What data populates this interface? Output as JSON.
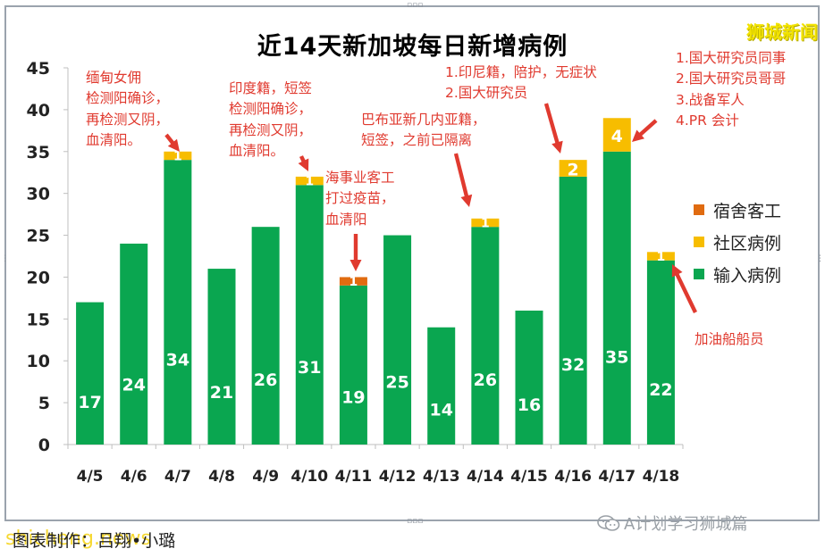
{
  "brand": "狮城新闻",
  "credit": "图表制作：吕翔•小璐",
  "watermark_site": "shicheng.news",
  "watermark_account": "A计划学习狮城篇",
  "colors": {
    "input": "#0aa650",
    "community": "#f7bd00",
    "dorm": "#e06b10",
    "annotation": "#e03a2f"
  },
  "annotations": {
    "a1": "缅甸女佣\n检测阳确诊，\n再检测又阴，\n血清阳。",
    "a2": "印度籍，短签\n检测阳确诊，\n再检测又阴，\n血清阳。",
    "a3": "海事业客工\n打过疫苗，\n血清阳",
    "a4": "巴布亚新几内亚籍，\n短签，之前已隔离",
    "a5": "1.印尼籍，陪护，无症状\n2.国大研究员",
    "a6": "1.国大研究员同事\n2.国大研究员哥哥\n3.战备军人\n4.PR 会计",
    "a7": "加油船船员"
  },
  "chart_data": {
    "type": "bar",
    "stacked": true,
    "title": "近14天新加坡每日新增病例",
    "categories": [
      "4/5",
      "4/6",
      "4/7",
      "4/8",
      "4/9",
      "4/10",
      "4/11",
      "4/12",
      "4/13",
      "4/14",
      "4/15",
      "4/16",
      "4/17",
      "4/18"
    ],
    "series": [
      {
        "name": "输入病例",
        "color": "#0aa650",
        "values": [
          17,
          24,
          34,
          21,
          26,
          31,
          19,
          25,
          14,
          26,
          16,
          32,
          35,
          22
        ]
      },
      {
        "name": "社区病例",
        "color": "#f7bd00",
        "values": [
          0,
          0,
          1,
          0,
          0,
          1,
          0,
          0,
          0,
          1,
          0,
          2,
          4,
          1
        ]
      },
      {
        "name": "宿舍客工",
        "color": "#e06b10",
        "values": [
          0,
          0,
          0,
          0,
          0,
          0,
          1,
          0,
          0,
          0,
          0,
          0,
          0,
          0
        ]
      }
    ],
    "ylim": [
      0,
      45
    ],
    "yticks": [
      0,
      5,
      10,
      15,
      20,
      25,
      30,
      35,
      40,
      45
    ],
    "legend_position": "right",
    "grid": false,
    "data_labels": {
      "input": [
        "17",
        "24",
        "34",
        "21",
        "26",
        "31",
        "19",
        "25",
        "14",
        "26",
        "16",
        "32",
        "35",
        "22"
      ],
      "community": [
        "",
        "",
        "1",
        "",
        "",
        "1",
        "",
        "",
        "",
        "1",
        "",
        "2",
        "4",
        "1"
      ],
      "dorm": [
        "",
        "",
        "",
        "",
        "",
        "",
        "1",
        "",
        "",
        "",
        "",
        "",
        "",
        ""
      ]
    }
  }
}
